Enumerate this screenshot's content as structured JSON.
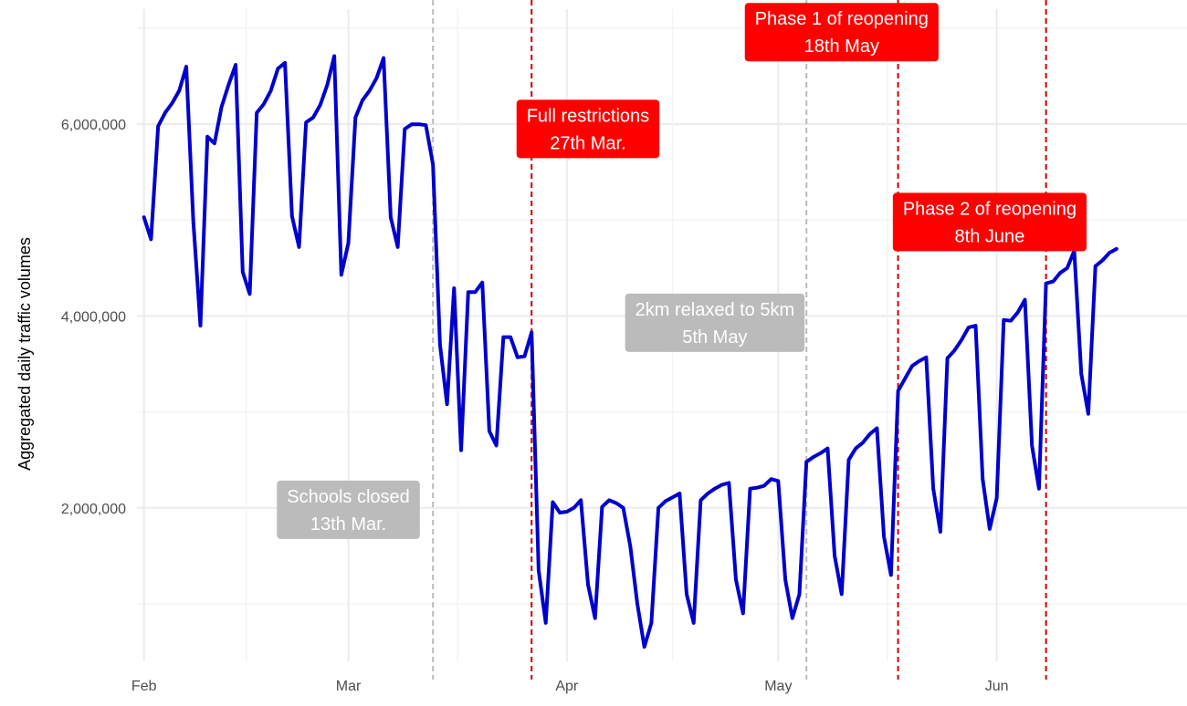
{
  "chart_data": {
    "type": "line",
    "title": "",
    "xlabel": "",
    "ylabel": "Aggregated daily traffic volumes",
    "xlim": [
      "2020-01-31",
      "2020-06-28"
    ],
    "ylim": [
      400000,
      7200000
    ],
    "grid": true,
    "x_ticks": [
      {
        "date": "2020-02-01",
        "label": "Feb"
      },
      {
        "date": "2020-03-01",
        "label": "Mar"
      },
      {
        "date": "2020-04-01",
        "label": "Apr"
      },
      {
        "date": "2020-05-01",
        "label": "May"
      },
      {
        "date": "2020-06-01",
        "label": "Jun"
      }
    ],
    "y_ticks": [
      {
        "value": 2000000,
        "label": "2,000,000"
      },
      {
        "value": 4000000,
        "label": "4,000,000"
      },
      {
        "value": 6000000,
        "label": "6,000,000"
      }
    ],
    "series": [
      {
        "color": "#0000CD",
        "start_date": "2020-02-01",
        "values": [
          5030000,
          4800000,
          5980000,
          6120000,
          6220000,
          6350000,
          6600000,
          4990000,
          3900000,
          5870000,
          5800000,
          6180000,
          6410000,
          6620000,
          4460000,
          4230000,
          6120000,
          6210000,
          6350000,
          6580000,
          6640000,
          5040000,
          4720000,
          6020000,
          6070000,
          6200000,
          6410000,
          6710000,
          4430000,
          4760000,
          6070000,
          6250000,
          6350000,
          6480000,
          6690000,
          5030000,
          4720000,
          5950000,
          6000000,
          6000000,
          5990000,
          5580000,
          3700000,
          3080000,
          4290000,
          2600000,
          4250000,
          4250000,
          4350000,
          2800000,
          2650000,
          3780000,
          3780000,
          3570000,
          3580000,
          3830000,
          1350000,
          800000,
          2060000,
          1950000,
          1960000,
          2000000,
          2080000,
          1200000,
          850000,
          2010000,
          2080000,
          2050000,
          2000000,
          1600000,
          1000000,
          550000,
          800000,
          2000000,
          2070000,
          2110000,
          2150000,
          1100000,
          800000,
          2080000,
          2150000,
          2200000,
          2240000,
          2260000,
          1250000,
          900000,
          2200000,
          2210000,
          2230000,
          2300000,
          2280000,
          1250000,
          850000,
          1100000,
          2480000,
          2530000,
          2570000,
          2620000,
          1500000,
          1100000,
          2500000,
          2620000,
          2680000,
          2770000,
          2830000,
          1700000,
          1300000,
          3220000,
          3350000,
          3480000,
          3530000,
          3570000,
          2200000,
          1750000,
          3560000,
          3640000,
          3750000,
          3880000,
          3900000,
          2300000,
          1780000,
          2100000,
          3960000,
          3950000,
          4040000,
          4170000,
          2650000,
          2200000,
          4340000,
          4360000,
          4450000,
          4500000,
          4680000,
          3400000,
          2980000,
          4520000,
          4580000,
          4660000,
          4700000
        ]
      }
    ],
    "events": [
      {
        "date": "2020-03-13",
        "style": "dashed",
        "color": "#BBBBBB"
      },
      {
        "date": "2020-03-27",
        "style": "dashed",
        "color": "#CC0000"
      },
      {
        "date": "2020-05-05",
        "style": "dashed",
        "color": "#BBBBBB"
      },
      {
        "date": "2020-05-18",
        "style": "dashed",
        "color": "#CC0000"
      },
      {
        "date": "2020-06-08",
        "style": "dashed",
        "color": "#CC0000"
      }
    ],
    "annotations": [
      {
        "lines": [
          "Schools closed",
          "13th Mar."
        ],
        "date": "2020-03-01",
        "value": 1980000,
        "fill": "#BBBBBB",
        "text_color": "#FFFFFF"
      },
      {
        "lines": [
          "Full restrictions",
          "27th Mar."
        ],
        "date": "2020-04-04",
        "value": 5950000,
        "fill": "#FF0000",
        "text_color": "#FFFFFF"
      },
      {
        "lines": [
          "2km relaxed to 5km",
          "5th May"
        ],
        "date": "2020-04-22",
        "value": 3930000,
        "fill": "#BBBBBB",
        "text_color": "#FFFFFF"
      },
      {
        "lines": [
          "Phase 1 of reopening",
          "18th May"
        ],
        "date": "2020-05-10",
        "value": 6960000,
        "fill": "#FF0000",
        "text_color": "#FFFFFF"
      },
      {
        "lines": [
          "Phase 2 of reopening",
          "8th June"
        ],
        "date": "2020-05-31",
        "value": 4980000,
        "fill": "#FF0000",
        "text_color": "#FFFFFF"
      }
    ]
  }
}
